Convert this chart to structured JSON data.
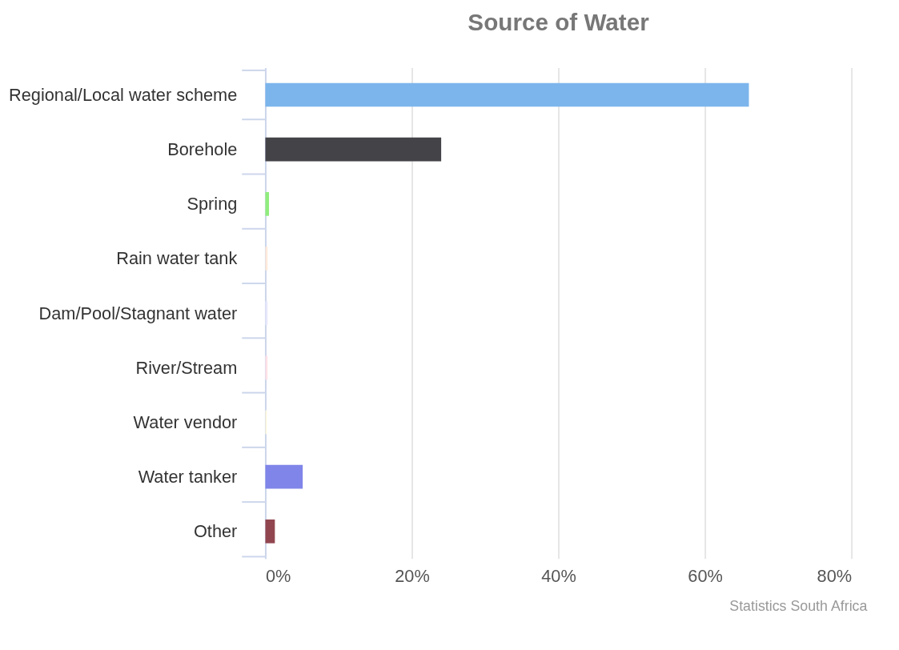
{
  "chart_data": {
    "type": "bar",
    "orientation": "horizontal",
    "title": "Source of Water",
    "categories": [
      "Regional/Local water scheme",
      "Borehole",
      "Spring",
      "Rain water tank",
      "Dam/Pool/Stagnant water",
      "River/Stream",
      "Water vendor",
      "Water tanker",
      "Other"
    ],
    "values": [
      66,
      24,
      0.5,
      0.3,
      0.3,
      0.3,
      0.2,
      5.1,
      1.3
    ],
    "colors": [
      "#7cb5ec",
      "#434348",
      "#90ed7d",
      "#fde9d9",
      "#e6e7fb",
      "#fde0e6",
      "#fbf6dc",
      "#8085e9",
      "#91464f"
    ],
    "xlim": [
      0,
      80
    ],
    "xticks": [
      {
        "value": 0,
        "label": "0%"
      },
      {
        "value": 20,
        "label": "20%"
      },
      {
        "value": 40,
        "label": "40%"
      },
      {
        "value": 60,
        "label": "60%"
      },
      {
        "value": 80,
        "label": "80%"
      }
    ],
    "grid": "x",
    "legend": false,
    "annotations": [
      "Statistics South Africa"
    ]
  }
}
